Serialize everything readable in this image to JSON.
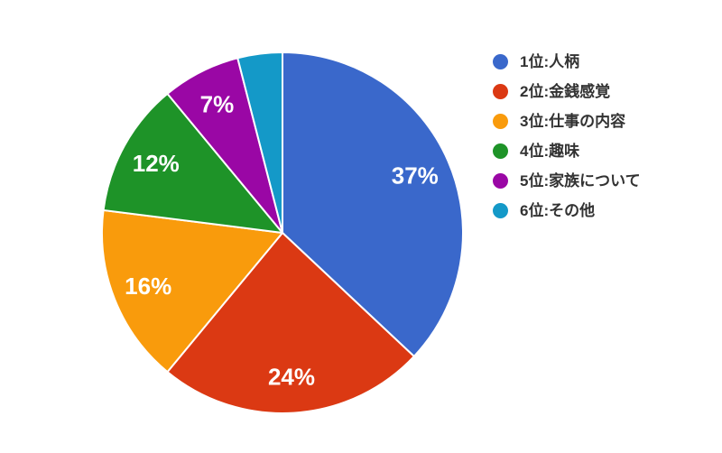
{
  "page": {
    "background_color": "#ffffff"
  },
  "chart_data": {
    "type": "pie",
    "title": "",
    "total": 100,
    "start_angle": "top",
    "direction": "clockwise",
    "legend_position": "right",
    "slice_label_color": "#ffffff",
    "legend_text_color": "#323232",
    "slice_border_color": "#ffffff",
    "slices": [
      {
        "label": "1位:人柄",
        "value": 37,
        "percent_label": "37%",
        "color": "#3A68CB"
      },
      {
        "label": "2位:金銭感覚",
        "value": 24,
        "percent_label": "24%",
        "color": "#DB3913"
      },
      {
        "label": "3位:仕事の内容",
        "value": 16,
        "percent_label": "16%",
        "color": "#F99B0C"
      },
      {
        "label": "4位:趣味",
        "value": 12,
        "percent_label": "12%",
        "color": "#1E9328"
      },
      {
        "label": "5位:家族について",
        "value": 7,
        "percent_label": "7%",
        "color": "#9A07A5"
      },
      {
        "label": "6位:その他",
        "value": 4,
        "percent_label": "",
        "color": "#1499C8"
      }
    ]
  }
}
